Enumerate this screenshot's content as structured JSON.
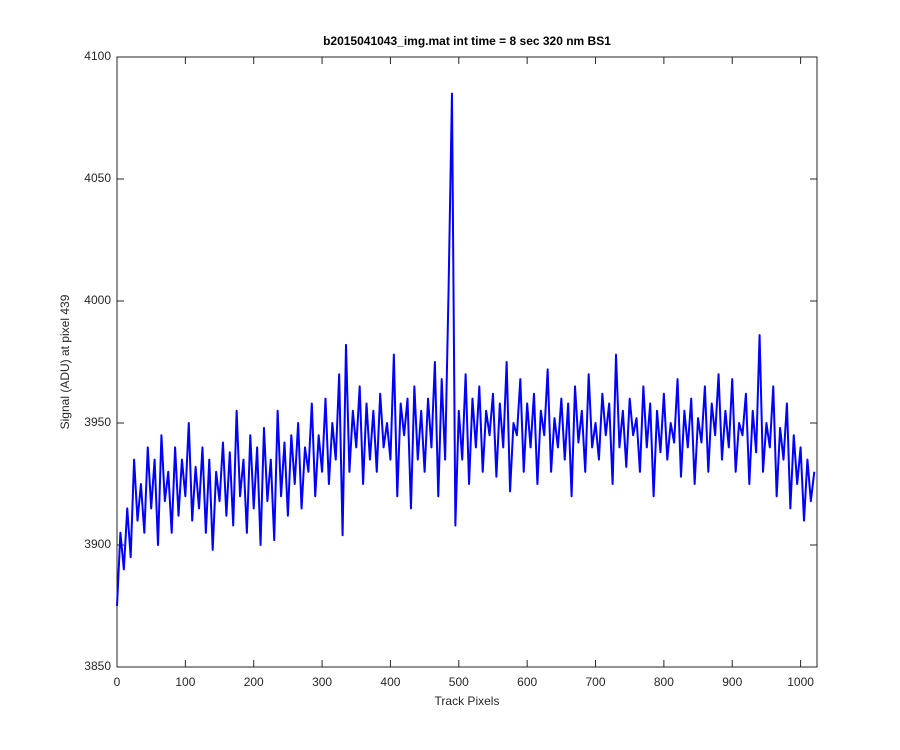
{
  "chart_data": {
    "type": "line",
    "title": "b2015041043_img.mat int time = 8 sec  320 nm BS1",
    "x_label": "Track Pixels",
    "y_label": "Signal (ADU) at pixel 439",
    "xlim": [
      0,
      1024
    ],
    "ylim": [
      3850,
      4100
    ],
    "xticks": [
      0,
      100,
      200,
      300,
      400,
      500,
      600,
      700,
      800,
      900,
      1000
    ],
    "yticks": [
      3850,
      3900,
      3950,
      4000,
      4050,
      4100
    ],
    "grid": false,
    "x": [
      0,
      5,
      10,
      15,
      20,
      25,
      30,
      35,
      40,
      45,
      50,
      55,
      60,
      65,
      70,
      75,
      80,
      85,
      90,
      95,
      100,
      105,
      110,
      115,
      120,
      125,
      130,
      135,
      140,
      145,
      150,
      155,
      160,
      165,
      170,
      175,
      180,
      185,
      190,
      195,
      200,
      205,
      210,
      215,
      220,
      225,
      230,
      235,
      240,
      245,
      250,
      255,
      260,
      265,
      270,
      275,
      280,
      285,
      290,
      295,
      300,
      305,
      310,
      315,
      320,
      325,
      330,
      335,
      340,
      345,
      350,
      355,
      360,
      365,
      370,
      375,
      380,
      385,
      390,
      395,
      400,
      405,
      410,
      415,
      420,
      425,
      430,
      435,
      440,
      445,
      450,
      455,
      460,
      465,
      470,
      475,
      480,
      485,
      490,
      495,
      500,
      505,
      510,
      515,
      520,
      525,
      530,
      535,
      540,
      545,
      550,
      555,
      560,
      565,
      570,
      575,
      580,
      585,
      590,
      595,
      600,
      605,
      610,
      615,
      620,
      625,
      630,
      635,
      640,
      645,
      650,
      655,
      660,
      665,
      670,
      675,
      680,
      685,
      690,
      695,
      700,
      705,
      710,
      715,
      720,
      725,
      730,
      735,
      740,
      745,
      750,
      755,
      760,
      765,
      770,
      775,
      780,
      785,
      790,
      795,
      800,
      805,
      810,
      815,
      820,
      825,
      830,
      835,
      840,
      845,
      850,
      855,
      860,
      865,
      870,
      875,
      880,
      885,
      890,
      895,
      900,
      905,
      910,
      915,
      920,
      925,
      930,
      935,
      940,
      945,
      950,
      955,
      960,
      965,
      970,
      975,
      980,
      985,
      990,
      995,
      1000,
      1005,
      1010,
      1015,
      1020
    ],
    "series": [
      {
        "color": "#0000ff",
        "values": [
          3875,
          3905,
          3890,
          3915,
          3895,
          3935,
          3910,
          3925,
          3905,
          3940,
          3915,
          3935,
          3900,
          3945,
          3918,
          3930,
          3905,
          3940,
          3912,
          3935,
          3920,
          3950,
          3910,
          3932,
          3915,
          3940,
          3905,
          3935,
          3898,
          3930,
          3918,
          3942,
          3912,
          3938,
          3908,
          3955,
          3920,
          3935,
          3905,
          3945,
          3915,
          3940,
          3900,
          3948,
          3918,
          3935,
          3902,
          3955,
          3920,
          3942,
          3912,
          3945,
          3925,
          3950,
          3915,
          3940,
          3930,
          3958,
          3920,
          3945,
          3930,
          3960,
          3925,
          3950,
          3935,
          3970,
          3904,
          3982,
          3930,
          3955,
          3940,
          3965,
          3925,
          3958,
          3935,
          3955,
          3930,
          3962,
          3940,
          3950,
          3935,
          3978,
          3920,
          3958,
          3945,
          3960,
          3915,
          3965,
          3935,
          3955,
          3930,
          3960,
          3940,
          3975,
          3920,
          3968,
          3935,
          4004,
          4085,
          3908,
          3955,
          3935,
          3970,
          3925,
          3960,
          3940,
          3965,
          3930,
          3955,
          3945,
          3962,
          3928,
          3958,
          3940,
          3975,
          3922,
          3950,
          3945,
          3968,
          3930,
          3958,
          3940,
          3962,
          3925,
          3955,
          3945,
          3972,
          3930,
          3952,
          3940,
          3960,
          3935,
          3958,
          3920,
          3965,
          3942,
          3955,
          3930,
          3970,
          3940,
          3950,
          3935,
          3962,
          3945,
          3958,
          3925,
          3978,
          3940,
          3955,
          3932,
          3960,
          3945,
          3952,
          3930,
          3965,
          3940,
          3958,
          3920,
          3955,
          3938,
          3962,
          3935,
          3950,
          3942,
          3968,
          3928,
          3955,
          3940,
          3960,
          3925,
          3952,
          3942,
          3965,
          3930,
          3958,
          3945,
          3970,
          3935,
          3955,
          3940,
          3968,
          3930,
          3950,
          3945,
          3962,
          3925,
          3955,
          3938,
          3986,
          3930,
          3950,
          3940,
          3965,
          3920,
          3948,
          3935,
          3958,
          3915,
          3945,
          3925,
          3940,
          3910,
          3935,
          3918,
          3930
        ]
      }
    ]
  }
}
